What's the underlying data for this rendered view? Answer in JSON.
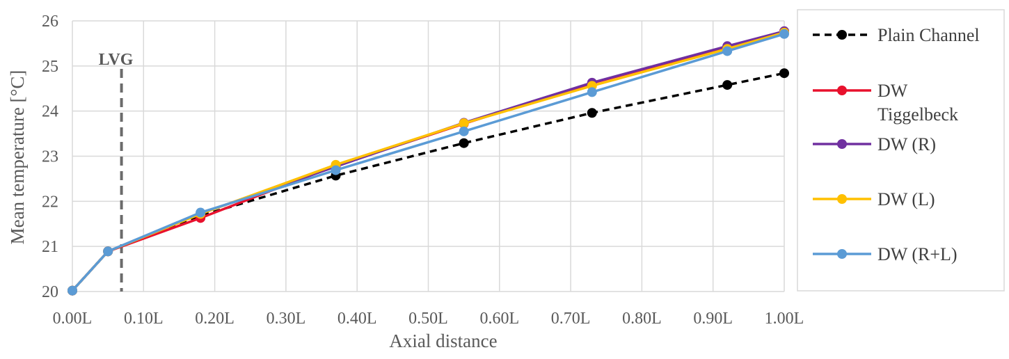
{
  "chart_data": {
    "type": "line",
    "xlabel": "Axial distance",
    "ylabel": "Mean temperature [°C]",
    "xlim": [
      0,
      1
    ],
    "ylim": [
      20,
      26
    ],
    "x_ticks": [
      "0.00L",
      "0.10L",
      "0.20L",
      "0.30L",
      "0.40L",
      "0.50L",
      "0.60L",
      "0.70L",
      "0.80L",
      "0.90L",
      "1.00L"
    ],
    "y_ticks": [
      "20",
      "21",
      "22",
      "23",
      "24",
      "25",
      "26"
    ],
    "grid": true,
    "legend_position": "right",
    "annotation": {
      "label": "LVG",
      "x": 0.069
    },
    "x": [
      0.0,
      0.05,
      0.18,
      0.37,
      0.55,
      0.73,
      0.92,
      1.0
    ],
    "series": [
      {
        "name": "Plain Channel",
        "color": "#000000",
        "dashed": true,
        "values": [
          20.02,
          20.89,
          21.68,
          22.57,
          23.29,
          23.96,
          24.58,
          24.84
        ]
      },
      {
        "name": "DW Tiggelbeck",
        "color": "#e8112d",
        "dashed": false,
        "values": [
          20.02,
          20.89,
          21.63,
          22.79,
          23.72,
          24.62,
          25.43,
          25.77
        ]
      },
      {
        "name": "DW (R)",
        "color": "#7030a0",
        "dashed": false,
        "values": [
          20.02,
          20.89,
          21.73,
          22.77,
          23.74,
          24.63,
          25.44,
          25.77
        ]
      },
      {
        "name": "DW (L)",
        "color": "#ffc000",
        "dashed": false,
        "values": [
          20.02,
          20.89,
          21.72,
          22.81,
          23.73,
          24.56,
          25.38,
          25.74
        ]
      },
      {
        "name": "DW (R+L)",
        "color": "#5b9bd5",
        "dashed": false,
        "values": [
          20.02,
          20.89,
          21.75,
          22.69,
          23.55,
          24.42,
          25.33,
          25.71
        ]
      }
    ]
  }
}
